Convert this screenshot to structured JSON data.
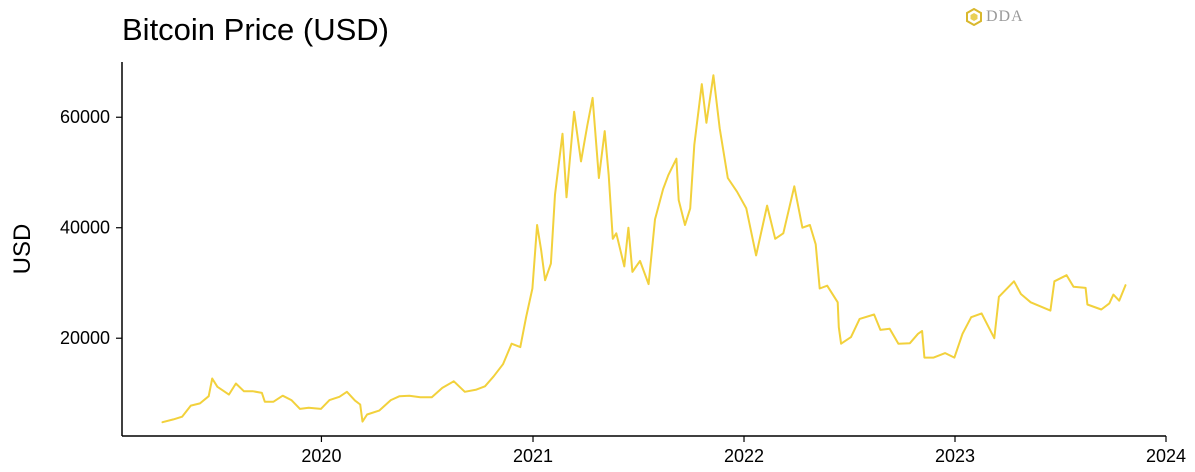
{
  "chart_data": {
    "type": "line",
    "title": "Bitcoin Price (USD)",
    "xlabel": "",
    "ylabel": "USD",
    "watermark": "DDA",
    "line_color": "#F2D13C",
    "grid": false,
    "xlim": [
      "2019-01-21",
      "2024-01-01"
    ],
    "ylim": [
      2300,
      70000
    ],
    "x_ticks": [
      "2020-01-01",
      "2021-01-01",
      "2022-01-01",
      "2023-01-01",
      "2024-01-01"
    ],
    "x_tick_labels": [
      "2020",
      "2021",
      "2022",
      "2023",
      "2024"
    ],
    "y_ticks": [
      20000,
      40000,
      60000
    ],
    "y_tick_labels": [
      "20000",
      "40000",
      "60000"
    ],
    "series": [
      {
        "points": [
          [
            "2019-04-01",
            4800
          ],
          [
            "2019-04-20",
            5300
          ],
          [
            "2019-05-05",
            5800
          ],
          [
            "2019-05-20",
            7800
          ],
          [
            "2019-06-05",
            8200
          ],
          [
            "2019-06-20",
            9500
          ],
          [
            "2019-06-26",
            12700
          ],
          [
            "2019-07-05",
            11200
          ],
          [
            "2019-07-15",
            10500
          ],
          [
            "2019-07-25",
            9800
          ],
          [
            "2019-08-06",
            11800
          ],
          [
            "2019-08-20",
            10400
          ],
          [
            "2019-09-05",
            10400
          ],
          [
            "2019-09-20",
            10100
          ],
          [
            "2019-09-25",
            8500
          ],
          [
            "2019-10-10",
            8500
          ],
          [
            "2019-10-26",
            9600
          ],
          [
            "2019-11-10",
            8800
          ],
          [
            "2019-11-25",
            7200
          ],
          [
            "2019-12-10",
            7400
          ],
          [
            "2019-12-31",
            7200
          ],
          [
            "2020-01-15",
            8800
          ],
          [
            "2020-02-01",
            9400
          ],
          [
            "2020-02-14",
            10300
          ],
          [
            "2020-02-28",
            8700
          ],
          [
            "2020-03-08",
            8000
          ],
          [
            "2020-03-12",
            4900
          ],
          [
            "2020-03-20",
            6200
          ],
          [
            "2020-04-10",
            6900
          ],
          [
            "2020-04-30",
            8800
          ],
          [
            "2020-05-15",
            9500
          ],
          [
            "2020-06-01",
            9600
          ],
          [
            "2020-06-20",
            9300
          ],
          [
            "2020-07-10",
            9300
          ],
          [
            "2020-07-28",
            11000
          ],
          [
            "2020-08-17",
            12200
          ],
          [
            "2020-09-05",
            10300
          ],
          [
            "2020-09-25",
            10700
          ],
          [
            "2020-10-10",
            11300
          ],
          [
            "2020-10-25",
            13100
          ],
          [
            "2020-11-10",
            15300
          ],
          [
            "2020-11-25",
            19000
          ],
          [
            "2020-12-10",
            18400
          ],
          [
            "2020-12-20",
            23800
          ],
          [
            "2020-12-31",
            29000
          ],
          [
            "2021-01-08",
            40500
          ],
          [
            "2021-01-15",
            36000
          ],
          [
            "2021-01-22",
            30500
          ],
          [
            "2021-02-01",
            33500
          ],
          [
            "2021-02-08",
            46000
          ],
          [
            "2021-02-21",
            57000
          ],
          [
            "2021-02-28",
            45500
          ],
          [
            "2021-03-13",
            61000
          ],
          [
            "2021-03-25",
            52000
          ],
          [
            "2021-04-05",
            58500
          ],
          [
            "2021-04-14",
            63500
          ],
          [
            "2021-04-25",
            49000
          ],
          [
            "2021-05-05",
            57500
          ],
          [
            "2021-05-12",
            49500
          ],
          [
            "2021-05-19",
            38000
          ],
          [
            "2021-05-25",
            39000
          ],
          [
            "2021-06-08",
            33000
          ],
          [
            "2021-06-15",
            40000
          ],
          [
            "2021-06-22",
            32000
          ],
          [
            "2021-07-05",
            34000
          ],
          [
            "2021-07-20",
            29800
          ],
          [
            "2021-07-31",
            41500
          ],
          [
            "2021-08-14",
            47000
          ],
          [
            "2021-08-23",
            49500
          ],
          [
            "2021-09-06",
            52500
          ],
          [
            "2021-09-10",
            45000
          ],
          [
            "2021-09-21",
            40500
          ],
          [
            "2021-09-30",
            43500
          ],
          [
            "2021-10-07",
            55000
          ],
          [
            "2021-10-20",
            66000
          ],
          [
            "2021-10-28",
            59000
          ],
          [
            "2021-11-09",
            67600
          ],
          [
            "2021-11-20",
            58000
          ],
          [
            "2021-12-04",
            49000
          ],
          [
            "2021-12-20",
            46500
          ],
          [
            "2022-01-05",
            43500
          ],
          [
            "2022-01-22",
            35000
          ],
          [
            "2022-02-10",
            44000
          ],
          [
            "2022-02-24",
            38000
          ],
          [
            "2022-03-10",
            39000
          ],
          [
            "2022-03-29",
            47500
          ],
          [
            "2022-04-12",
            40000
          ],
          [
            "2022-04-25",
            40500
          ],
          [
            "2022-05-05",
            37000
          ],
          [
            "2022-05-12",
            29000
          ],
          [
            "2022-05-25",
            29500
          ],
          [
            "2022-06-12",
            26500
          ],
          [
            "2022-06-14",
            22000
          ],
          [
            "2022-06-18",
            19000
          ],
          [
            "2022-07-05",
            20200
          ],
          [
            "2022-07-20",
            23500
          ],
          [
            "2022-08-14",
            24300
          ],
          [
            "2022-08-25",
            21500
          ],
          [
            "2022-09-10",
            21700
          ],
          [
            "2022-09-25",
            19000
          ],
          [
            "2022-10-15",
            19100
          ],
          [
            "2022-10-29",
            20800
          ],
          [
            "2022-11-05",
            21300
          ],
          [
            "2022-11-09",
            16500
          ],
          [
            "2022-11-25",
            16500
          ],
          [
            "2022-12-15",
            17300
          ],
          [
            "2022-12-31",
            16500
          ],
          [
            "2023-01-14",
            20800
          ],
          [
            "2023-01-29",
            23800
          ],
          [
            "2023-02-16",
            24500
          ],
          [
            "2023-03-10",
            20000
          ],
          [
            "2023-03-18",
            27500
          ],
          [
            "2023-04-13",
            30300
          ],
          [
            "2023-04-25",
            28000
          ],
          [
            "2023-05-12",
            26500
          ],
          [
            "2023-06-15",
            25000
          ],
          [
            "2023-06-22",
            30300
          ],
          [
            "2023-07-13",
            31400
          ],
          [
            "2023-07-25",
            29300
          ],
          [
            "2023-08-15",
            29100
          ],
          [
            "2023-08-18",
            26100
          ],
          [
            "2023-09-11",
            25200
          ],
          [
            "2023-09-25",
            26300
          ],
          [
            "2023-10-02",
            27900
          ],
          [
            "2023-10-12",
            26800
          ],
          [
            "2023-10-23",
            29600
          ]
        ]
      }
    ]
  }
}
